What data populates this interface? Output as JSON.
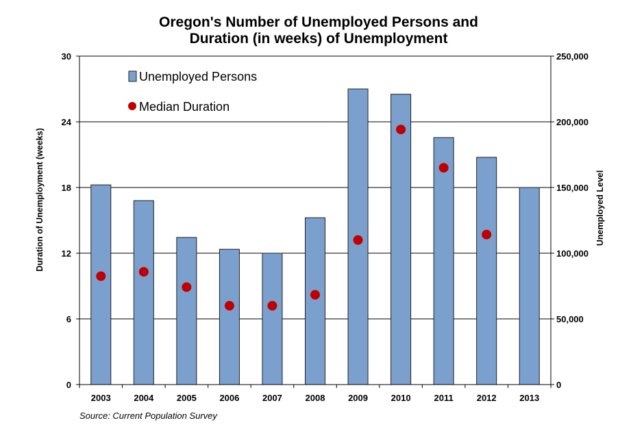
{
  "chart_data": {
    "type": "bar",
    "title_line1": "Oregon's  Number of Unemployed Persons and",
    "title_line2": "Duration (in weeks) of Unemployment",
    "categories": [
      "2003",
      "2004",
      "2005",
      "2006",
      "2007",
      "2008",
      "2009",
      "2010",
      "2011",
      "2012",
      "2013"
    ],
    "series": [
      {
        "name": "Unemployed Persons",
        "type": "bar",
        "axis": "right",
        "values": [
          152000,
          140000,
          112000,
          103000,
          100000,
          127000,
          225000,
          221000,
          188000,
          173000,
          150000
        ]
      },
      {
        "name": "Median Duration",
        "type": "scatter",
        "axis": "left",
        "values": [
          9.9,
          10.3,
          8.9,
          7.2,
          7.2,
          8.2,
          13.2,
          23.3,
          19.8,
          13.7,
          null
        ]
      }
    ],
    "ylabel_left": "Duration of Unemployment (weeks)",
    "ylabel_right": "Unemployed Level",
    "ylim_left": [
      0,
      30
    ],
    "ylim_right": [
      0,
      250000
    ],
    "yticks_left": [
      "0",
      "6",
      "12",
      "18",
      "24",
      "30"
    ],
    "yticks_right": [
      "0",
      "50,000",
      "100,000",
      "150,000",
      "200,000",
      "250,000"
    ],
    "grid": true,
    "legend_position": "top-left",
    "colors": {
      "bar": "#7ba0cd",
      "bar_edge": "#1f1f1f",
      "marker": "#c00000",
      "grid": "#000000"
    },
    "source": "Source: Current Population Survey"
  }
}
